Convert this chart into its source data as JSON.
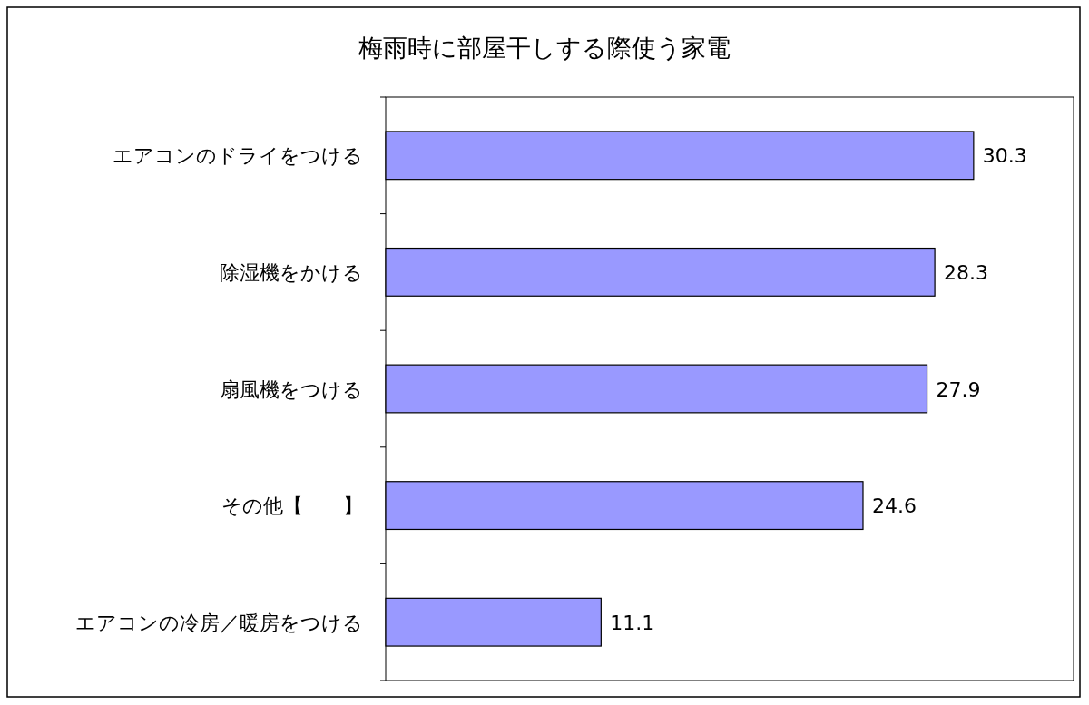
{
  "chart_data": {
    "type": "bar",
    "orientation": "horizontal",
    "title": "梅雨時に部屋干しする際使う家電",
    "categories": [
      "エアコンのドライをつける",
      "除湿機をかける",
      "扇風機をつける",
      "その他【　　】",
      "エアコンの冷房／暖房をつける"
    ],
    "values": [
      30.3,
      28.3,
      27.9,
      24.6,
      11.1
    ],
    "color": "#9999ff",
    "data_labels": true
  }
}
